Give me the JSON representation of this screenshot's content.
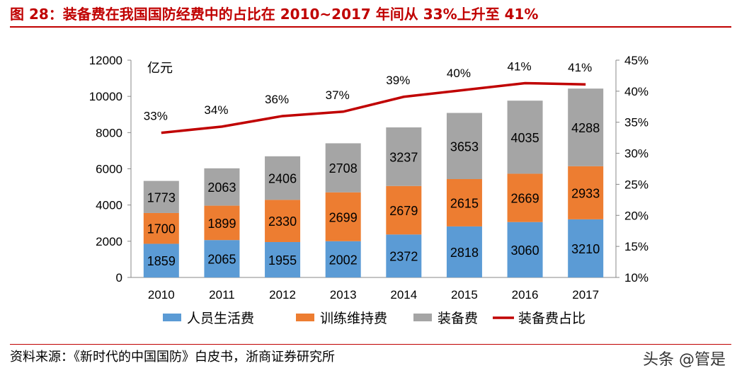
{
  "title": "图 28：装备费在我国国防经费中的占比在 2010~2017 年间从 33%上升至 41%",
  "footer": "资料来源：《新时代的中国国防》白皮书，浙商证券研究所",
  "watermark": "头条 @管是",
  "chart_data": {
    "type": "bar",
    "stacked": true,
    "unit_label": "亿元",
    "categories": [
      "2010",
      "2011",
      "2012",
      "2013",
      "2014",
      "2015",
      "2016",
      "2017"
    ],
    "series": [
      {
        "name": "人员生活费",
        "color": "#5b9bd5",
        "values": [
          1859,
          2065,
          1955,
          2002,
          2372,
          2818,
          3060,
          3210
        ]
      },
      {
        "name": "训练维持费",
        "color": "#ed7d31",
        "values": [
          1700,
          1899,
          2330,
          2699,
          2679,
          2615,
          2669,
          2933
        ]
      },
      {
        "name": "装备费",
        "color": "#a5a5a5",
        "values": [
          1773,
          2063,
          2406,
          2708,
          3237,
          3653,
          4035,
          4288
        ]
      }
    ],
    "line_series": {
      "name": "装备费占比",
      "color": "#c00000",
      "axis": "right",
      "values": [
        33.3,
        34.3,
        36.0,
        36.7,
        39.1,
        40.2,
        41.3,
        41.1
      ],
      "labels": [
        "33%",
        "34%",
        "36%",
        "37%",
        "39%",
        "40%",
        "41%",
        "41%"
      ]
    },
    "y_left": {
      "min": 0,
      "max": 12000,
      "ticks": [
        "0",
        "2000",
        "4000",
        "6000",
        "8000",
        "10000",
        "12000"
      ]
    },
    "y_right": {
      "min": 10,
      "max": 45,
      "ticks": [
        "10%",
        "15%",
        "20%",
        "25%",
        "30%",
        "35%",
        "40%",
        "45%"
      ]
    },
    "legend": "bottom"
  }
}
